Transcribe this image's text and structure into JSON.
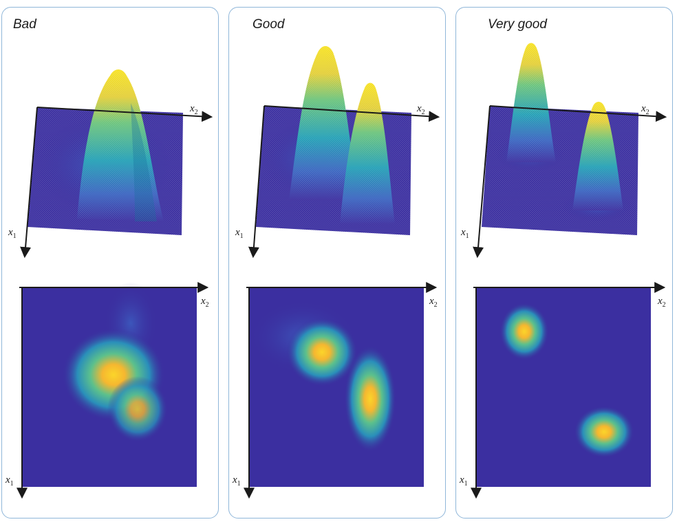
{
  "panels": [
    {
      "title": "Bad",
      "peaks": [
        {
          "x1": 0.5,
          "x2": 0.46,
          "height": 1.0
        },
        {
          "x1": 0.62,
          "x2": 0.6,
          "height": 0.75
        }
      ],
      "overlap": "high"
    },
    {
      "title": "Good",
      "peaks": [
        {
          "x1": 0.32,
          "x2": 0.4,
          "height": 1.0
        },
        {
          "x1": 0.62,
          "x2": 0.7,
          "height": 0.85
        }
      ],
      "overlap": "medium"
    },
    {
      "title": "Very good",
      "peaks": [
        {
          "x1": 0.22,
          "x2": 0.28,
          "height": 1.0
        },
        {
          "x1": 0.8,
          "x2": 0.72,
          "height": 0.85
        }
      ],
      "overlap": "low"
    }
  ],
  "axes": {
    "x1": "x",
    "x1_sub": "1",
    "x2": "x",
    "x2_sub": "2"
  },
  "colors": {
    "background": "#3a1f8f",
    "low": "#3b2fa0",
    "mid": "#1fa6a8",
    "high": "#f5e32a",
    "peak": "#f6a21f",
    "border": "#8fb6d9"
  }
}
